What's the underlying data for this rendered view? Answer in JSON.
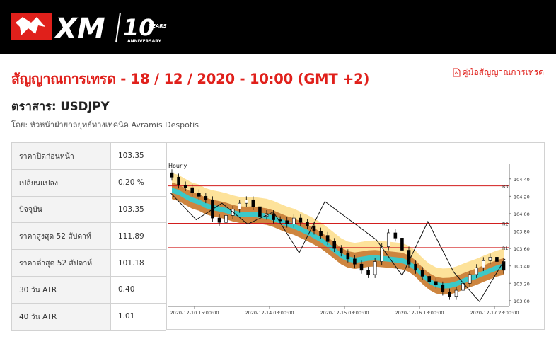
{
  "header": {
    "brand": "XM",
    "badge_number": "10",
    "badge_years": "YEARS",
    "badge_anniversary": "ANNIVERSARY"
  },
  "page": {
    "title": "สัญญาณการเทรด - 18 / 12 / 2020 - 10:00 (GMT +2)",
    "guide_link": "คู่มือสัญญาณการเทรด",
    "guide_icon": "pdf-icon",
    "instrument": "ตราสาร: USDJPY",
    "author": "โดย: หัวหน้าฝ่ายกลยุทธ์ทางเทคนิค Avramis Despotis"
  },
  "stats": [
    {
      "label": "ราคาปิดก่อนหน้า",
      "value": "103.35"
    },
    {
      "label": "เปลี่ยนแปลง",
      "value": "0.20 %"
    },
    {
      "label": "ปัจจุบัน",
      "value": "103.35"
    },
    {
      "label": "ราคาสูงสุด 52 สัปดาห์",
      "value": "111.89"
    },
    {
      "label": "ราคาต่ำสุด 52 สัปดาห์",
      "value": "101.18"
    },
    {
      "label": "30 วัน ATR",
      "value": "0.40"
    },
    {
      "label": "40 วัน ATR",
      "value": "1.01"
    }
  ],
  "chart_data": {
    "type": "line",
    "title": "Hourly",
    "ylim": [
      102.95,
      104.52
    ],
    "y_ticks": [
      "104.40",
      "104.20",
      "104.00",
      "103.80",
      "103.60",
      "103.40",
      "103.20",
      "103.00"
    ],
    "x_ticks": [
      "2020-12-10 15:00:00",
      "2020-12-14 03:00:00",
      "2020-12-15 08:00:00",
      "2020-12-16 13:00:00",
      "2020-12-17 23:00:00"
    ],
    "levels": [
      {
        "name": "R3",
        "value": 104.32
      },
      {
        "name": "R2",
        "value": 103.89
      },
      {
        "name": "R1",
        "value": 103.61
      }
    ],
    "series": [
      {
        "values": [
          104.42,
          104.33,
          104.3,
          104.24,
          104.2,
          104.16,
          103.95,
          103.9,
          103.98,
          104.05,
          104.12,
          104.16,
          104.08,
          103.97,
          104.0,
          103.93,
          103.92,
          103.88,
          103.95,
          103.9,
          103.86,
          103.8,
          103.75,
          103.68,
          103.6,
          103.55,
          103.48,
          103.42,
          103.35,
          103.3,
          103.45,
          103.62,
          103.78,
          103.72,
          103.58,
          103.42,
          103.35,
          103.28,
          103.22,
          103.18,
          103.1,
          103.05,
          103.12,
          103.2,
          103.3,
          103.38,
          103.46,
          103.5,
          103.45,
          103.35
        ]
      }
    ],
    "zigzag": [
      104.24,
      103.93,
      104.12,
      103.88,
      104.02,
      103.55,
      104.14,
      103.92,
      103.7,
      103.29,
      103.91,
      103.33,
      102.99,
      103.48
    ],
    "colors": {
      "candle_up": "#ffffff",
      "candle_down": "#000000",
      "band_outer": "#fde29a",
      "band_mid": "#cd853f",
      "band_inner": "#3cc8c8",
      "level_line": "#d21e1e"
    }
  }
}
